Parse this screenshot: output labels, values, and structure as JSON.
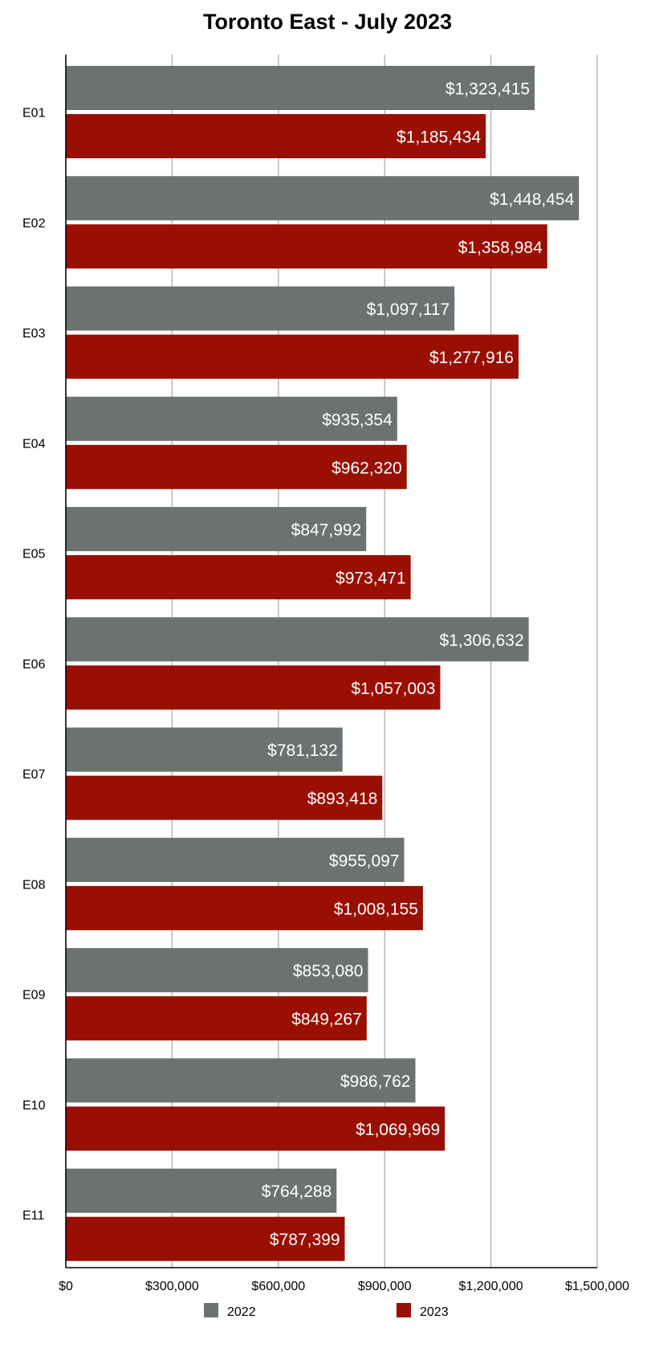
{
  "chart_data": {
    "type": "bar",
    "orientation": "horizontal",
    "title": "Toronto East - July 2023",
    "categories": [
      "E01",
      "E02",
      "E03",
      "E04",
      "E05",
      "E06",
      "E07",
      "E08",
      "E09",
      "E10",
      "E11"
    ],
    "series": [
      {
        "name": "2022",
        "color": "#6c736f",
        "values": [
          1323415,
          1448454,
          1097117,
          935354,
          847992,
          1306632,
          781132,
          955097,
          853080,
          986762,
          764288
        ],
        "labels": [
          "$1,323,415",
          "$1,448,454",
          "$1,097,117",
          "$935,354",
          "$847,992",
          "$1,306,632",
          "$781,132",
          "$955,097",
          "$853,080",
          "$986,762",
          "$764,288"
        ]
      },
      {
        "name": "2023",
        "color": "#9a0f03",
        "values": [
          1185434,
          1358984,
          1277916,
          962320,
          973471,
          1057003,
          893418,
          1008155,
          849267,
          1069969,
          787399
        ],
        "labels": [
          "$1,185,434",
          "$1,358,984",
          "$1,277,916",
          "$962,320",
          "$973,471",
          "$1,057,003",
          "$893,418",
          "$1,008,155",
          "$849,267",
          "$1,069,969",
          "$787,399"
        ]
      }
    ],
    "xlim": [
      0,
      1500000
    ],
    "xticks": [
      0,
      300000,
      600000,
      900000,
      1200000,
      1500000
    ],
    "xtick_labels": [
      "$0",
      "$300,000",
      "$600,000",
      "$900,000",
      "$1,200,000",
      "$1,500,000"
    ],
    "grid": true,
    "legend": "bottom"
  }
}
